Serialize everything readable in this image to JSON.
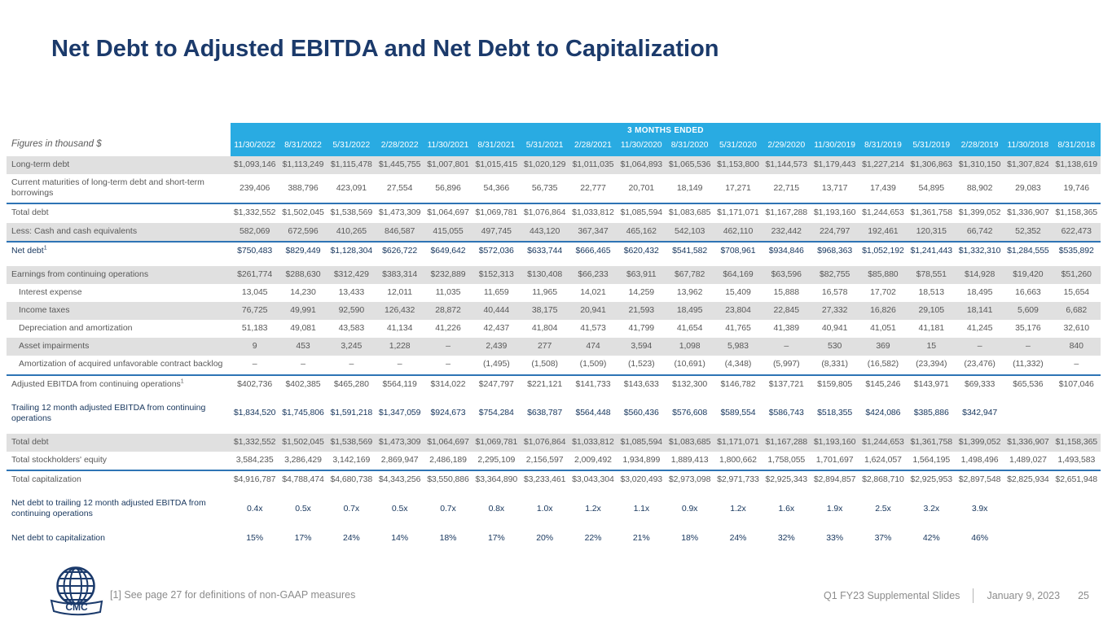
{
  "title": "Net Debt to Adjusted EBITDA and Net Debt to Capitalization",
  "figures_note": "Figures in thousand $",
  "colors": {
    "accent_cyan": "#29abe2",
    "navy": "#1b3a6b",
    "blue_text": "#17365d",
    "row_shade": "#e0e0e0",
    "body_text": "#595959",
    "rule_blue": "#2e74b5",
    "footer_gray": "#8c8c8c"
  },
  "table": {
    "group_header": "3 MONTHS ENDED",
    "columns": [
      "11/30/2022",
      "8/31/2022",
      "5/31/2022",
      "2/28/2022",
      "11/30/2021",
      "8/31/2021",
      "5/31/2021",
      "2/28/2021",
      "11/30/2020",
      "8/31/2020",
      "5/31/2020",
      "2/29/2020",
      "11/30/2019",
      "8/31/2019",
      "5/31/2019",
      "2/28/2019",
      "11/30/2018",
      "8/31/2018"
    ],
    "rows": [
      {
        "label": "Long-term debt",
        "shade": true,
        "values": [
          "$1,093,146",
          "$1,113,249",
          "$1,115,478",
          "$1,445,755",
          "$1,007,801",
          "$1,015,415",
          "$1,020,129",
          "$1,011,035",
          "$1,064,893",
          "$1,065,536",
          "$1,153,800",
          "$1,144,573",
          "$1,179,443",
          "$1,227,214",
          "$1,306,863",
          "$1,310,150",
          "$1,307,824",
          "$1,138,619"
        ]
      },
      {
        "label": "Current maturities of long-term debt and short-term borrowings",
        "rule": true,
        "values": [
          "239,406",
          "388,796",
          "423,091",
          "27,554",
          "56,896",
          "54,366",
          "56,735",
          "22,777",
          "20,701",
          "18,149",
          "17,271",
          "22,715",
          "13,717",
          "17,439",
          "54,895",
          "88,902",
          "29,083",
          "19,746"
        ]
      },
      {
        "label": "Total debt",
        "values": [
          "$1,332,552",
          "$1,502,045",
          "$1,538,569",
          "$1,473,309",
          "$1,064,697",
          "$1,069,781",
          "$1,076,864",
          "$1,033,812",
          "$1,085,594",
          "$1,083,685",
          "$1,171,071",
          "$1,167,288",
          "$1,193,160",
          "$1,244,653",
          "$1,361,758",
          "$1,399,052",
          "$1,336,907",
          "$1,158,365"
        ]
      },
      {
        "label": "Less: Cash and cash equivalents",
        "shade": true,
        "rule": true,
        "values": [
          "582,069",
          "672,596",
          "410,265",
          "846,587",
          "415,055",
          "497,745",
          "443,120",
          "367,347",
          "465,162",
          "542,103",
          "462,110",
          "232,442",
          "224,797",
          "192,461",
          "120,315",
          "66,742",
          "52,352",
          "622,473"
        ]
      },
      {
        "label": "Net debt",
        "sup": "1",
        "blue": true,
        "values": [
          "$750,483",
          "$829,449",
          "$1,128,304",
          "$626,722",
          "$649,642",
          "$572,036",
          "$633,744",
          "$666,465",
          "$620,432",
          "$541,582",
          "$708,961",
          "$934,846",
          "$968,363",
          "$1,052,192",
          "$1,241,443",
          "$1,332,310",
          "$1,284,555",
          "$535,892"
        ]
      },
      {
        "label": "Earnings from continuing operations",
        "shade": true,
        "gap": true,
        "values": [
          "$261,774",
          "$288,630",
          "$312,429",
          "$383,314",
          "$232,889",
          "$152,313",
          "$130,408",
          "$66,233",
          "$63,911",
          "$67,782",
          "$64,169",
          "$63,596",
          "$82,755",
          "$85,880",
          "$78,551",
          "$14,928",
          "$19,420",
          "$51,260"
        ]
      },
      {
        "label": "Interest expense",
        "indent": true,
        "values": [
          "13,045",
          "14,230",
          "13,433",
          "12,011",
          "11,035",
          "11,659",
          "11,965",
          "14,021",
          "14,259",
          "13,962",
          "15,409",
          "15,888",
          "16,578",
          "17,702",
          "18,513",
          "18,495",
          "16,663",
          "15,654"
        ]
      },
      {
        "label": "Income taxes",
        "indent": true,
        "shade": true,
        "values": [
          "76,725",
          "49,991",
          "92,590",
          "126,432",
          "28,872",
          "40,444",
          "38,175",
          "20,941",
          "21,593",
          "18,495",
          "23,804",
          "22,845",
          "27,332",
          "16,826",
          "29,105",
          "18,141",
          "5,609",
          "6,682"
        ]
      },
      {
        "label": "Depreciation and amortization",
        "indent": true,
        "values": [
          "51,183",
          "49,081",
          "43,583",
          "41,134",
          "41,226",
          "42,437",
          "41,804",
          "41,573",
          "41,799",
          "41,654",
          "41,765",
          "41,389",
          "40,941",
          "41,051",
          "41,181",
          "41,245",
          "35,176",
          "32,610"
        ]
      },
      {
        "label": "Asset impairments",
        "indent": true,
        "shade": true,
        "values": [
          "9",
          "453",
          "3,245",
          "1,228",
          "–",
          "2,439",
          "277",
          "474",
          "3,594",
          "1,098",
          "5,983",
          "–",
          "530",
          "369",
          "15",
          "–",
          "–",
          "840"
        ]
      },
      {
        "label": "Amortization of acquired unfavorable contract backlog",
        "indent": true,
        "rule": true,
        "values": [
          "–",
          "–",
          "–",
          "–",
          "–",
          "(1,495)",
          "(1,508)",
          "(1,509)",
          "(1,523)",
          "(10,691)",
          "(4,348)",
          "(5,997)",
          "(8,331)",
          "(16,582)",
          "(23,394)",
          "(23,476)",
          "(11,332)",
          "–"
        ]
      },
      {
        "label": "Adjusted EBITDA from continuing operations",
        "sup": "1",
        "values": [
          "$402,736",
          "$402,385",
          "$465,280",
          "$564,119",
          "$314,022",
          "$247,797",
          "$221,121",
          "$141,733",
          "$143,633",
          "$132,300",
          "$146,782",
          "$137,721",
          "$159,805",
          "$145,246",
          "$143,971",
          "$69,333",
          "$65,536",
          "$107,046"
        ]
      },
      {
        "label": "Trailing 12 month adjusted EBITDA from continuing operations",
        "blue": true,
        "gap": true,
        "values": [
          "$1,834,520",
          "$1,745,806",
          "$1,591,218",
          "$1,347,059",
          "$924,673",
          "$754,284",
          "$638,787",
          "$564,448",
          "$560,436",
          "$576,608",
          "$589,554",
          "$586,743",
          "$518,355",
          "$424,086",
          "$385,886",
          "$342,947",
          "",
          ""
        ]
      },
      {
        "label": "Total debt",
        "shade": true,
        "gap": true,
        "values": [
          "$1,332,552",
          "$1,502,045",
          "$1,538,569",
          "$1,473,309",
          "$1,064,697",
          "$1,069,781",
          "$1,076,864",
          "$1,033,812",
          "$1,085,594",
          "$1,083,685",
          "$1,171,071",
          "$1,167,288",
          "$1,193,160",
          "$1,244,653",
          "$1,361,758",
          "$1,399,052",
          "$1,336,907",
          "$1,158,365"
        ]
      },
      {
        "label": "Total stockholders' equity",
        "rule": true,
        "values": [
          "3,584,235",
          "3,286,429",
          "3,142,169",
          "2,869,947",
          "2,486,189",
          "2,295,109",
          "2,156,597",
          "2,009,492",
          "1,934,899",
          "1,889,413",
          "1,800,662",
          "1,758,055",
          "1,701,697",
          "1,624,057",
          "1,564,195",
          "1,498,496",
          "1,489,027",
          "1,493,583"
        ]
      },
      {
        "label": "Total capitalization",
        "values": [
          "$4,916,787",
          "$4,788,474",
          "$4,680,738",
          "$4,343,256",
          "$3,550,886",
          "$3,364,890",
          "$3,233,461",
          "$3,043,304",
          "$3,020,493",
          "$2,973,098",
          "$2,971,733",
          "$2,925,343",
          "$2,894,857",
          "$2,868,710",
          "$2,925,953",
          "$2,897,548",
          "$2,825,934",
          "$2,651,948"
        ]
      },
      {
        "label": "Net debt to trailing 12 month adjusted EBITDA from continuing operations",
        "blue": true,
        "gap": true,
        "values": [
          "0.4x",
          "0.5x",
          "0.7x",
          "0.5x",
          "0.7x",
          "0.8x",
          "1.0x",
          "1.2x",
          "1.1x",
          "0.9x",
          "1.2x",
          "1.6x",
          "1.9x",
          "2.5x",
          "3.2x",
          "3.9x",
          "",
          ""
        ]
      },
      {
        "label": "Net debt to capitalization",
        "blue": true,
        "gap": true,
        "values": [
          "15%",
          "17%",
          "24%",
          "14%",
          "18%",
          "17%",
          "20%",
          "22%",
          "21%",
          "18%",
          "24%",
          "32%",
          "33%",
          "37%",
          "42%",
          "46%",
          "",
          ""
        ]
      }
    ]
  },
  "footer": {
    "footnote": "[1] See page 27 for definitions of non-GAAP measures",
    "deck_name": "Q1 FY23 Supplemental Slides",
    "date": "January 9, 2023",
    "page": "25",
    "logo_text": "CMC"
  }
}
